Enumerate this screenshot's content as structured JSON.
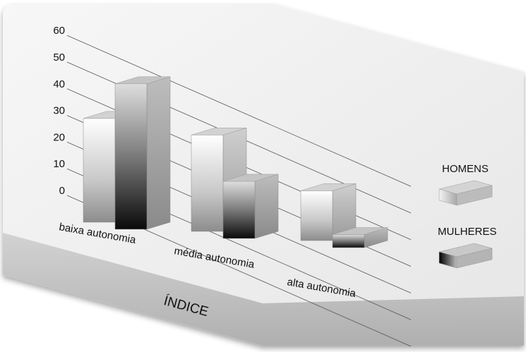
{
  "chart_data": {
    "type": "bar",
    "title": "",
    "xlabel": "ÍNDICE",
    "ylabel": "",
    "ylim": [
      0,
      60
    ],
    "yticks": [
      "0",
      "10",
      "20",
      "30",
      "40",
      "50",
      "60"
    ],
    "categories": [
      "baixa autonomia",
      "média autonomia",
      "alta autonomia"
    ],
    "series": [
      {
        "name": "HOMENS",
        "values": [
          40,
          37,
          18
        ]
      },
      {
        "name": "MULHERES",
        "values": [
          57,
          21,
          3
        ]
      }
    ],
    "grid": true,
    "legend": "right"
  }
}
